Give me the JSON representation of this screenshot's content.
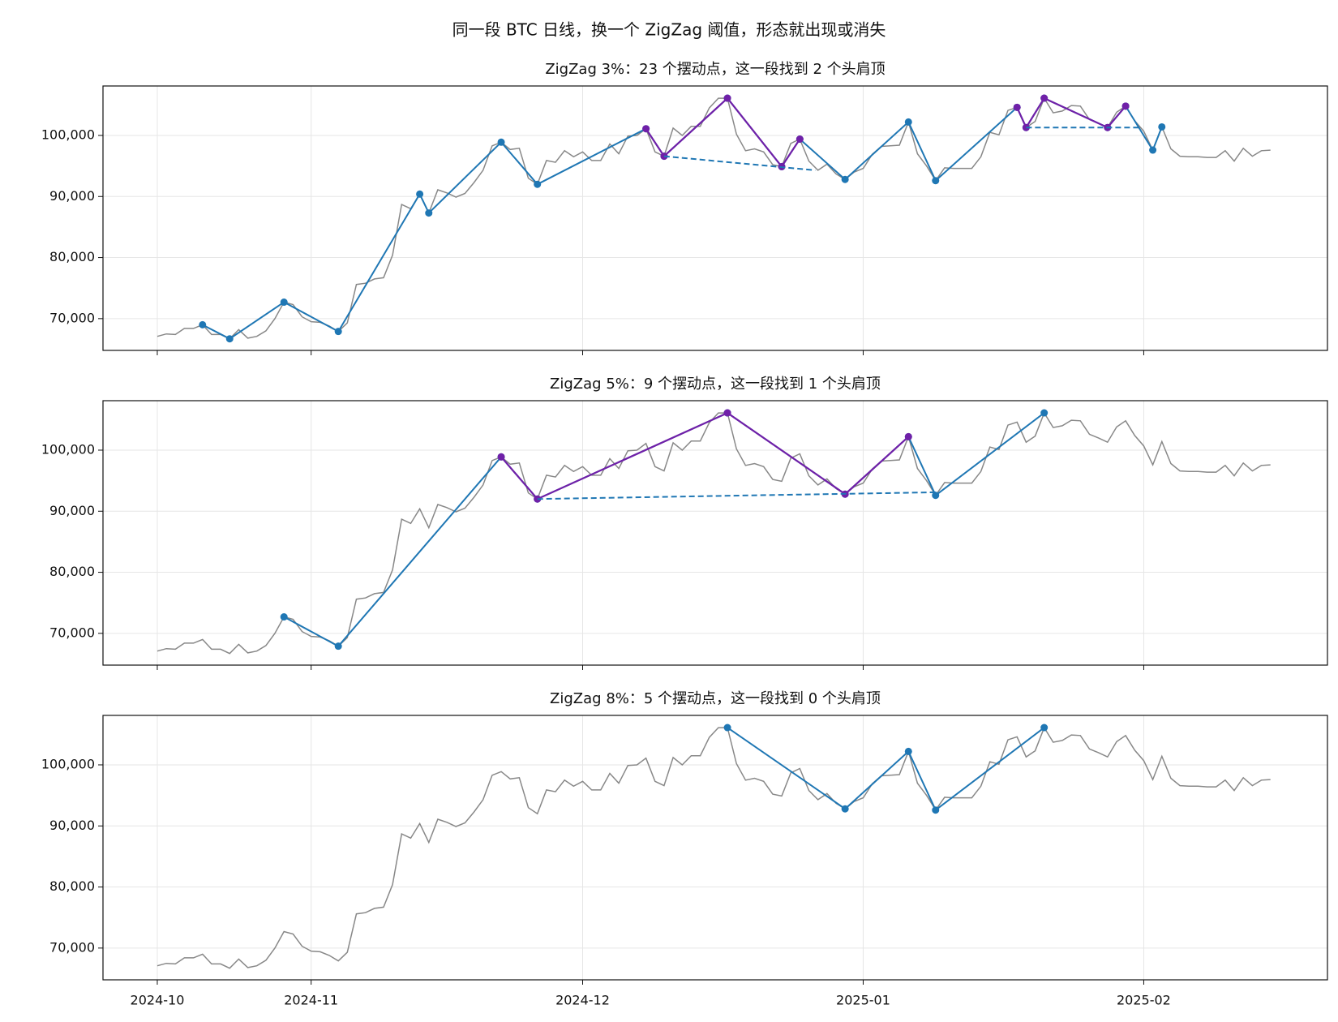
{
  "title": "同一段 BTC 日线，换一个 ZigZag 阈值，形态就出现或消失",
  "chart_data": [
    {
      "type": "line",
      "title": "ZigZag 3%：23 个摆动点，这一段找到 2 个头肩顶",
      "x": [
        0,
        1,
        2,
        3,
        4,
        5,
        6,
        7,
        8,
        9,
        10,
        11,
        12,
        13,
        14,
        15,
        16,
        17,
        18,
        19,
        20,
        21,
        22,
        23,
        24,
        25,
        26,
        27,
        28,
        29,
        30,
        31,
        32,
        33,
        34,
        35,
        36,
        37,
        38,
        39,
        40,
        41,
        42,
        43,
        44,
        45,
        46,
        47,
        48,
        49,
        50,
        51,
        52,
        53,
        54,
        55,
        56,
        57,
        58,
        59,
        60,
        61,
        62,
        63,
        64,
        65,
        66,
        67,
        68,
        69,
        70,
        71,
        72,
        73,
        74,
        75,
        76,
        77,
        78,
        79,
        80,
        81,
        82,
        83,
        84,
        85,
        86,
        87,
        88,
        89,
        90,
        91,
        92,
        93,
        94,
        95,
        96,
        97,
        98,
        99,
        100,
        101,
        102,
        103,
        104,
        105,
        106,
        107,
        108,
        109,
        110,
        111,
        112,
        113,
        114,
        115,
        116,
        117,
        118,
        119,
        120,
        121,
        122,
        123
      ],
      "xlim": [
        -6,
        129.3
      ],
      "xticks": [
        0,
        17,
        47,
        78,
        109
      ],
      "ylim": [
        64800,
        108100
      ],
      "yticks": [
        {
          "value": 70000,
          "label": "70,000"
        },
        {
          "value": 80000,
          "label": "80,000"
        },
        {
          "value": 90000,
          "label": "90,000"
        },
        {
          "value": 100000,
          "label": "100,000"
        }
      ],
      "grid": true,
      "price": {
        "color": "#888888",
        "values": [
          67100,
          67500,
          67400,
          68400,
          68400,
          69000,
          67400,
          67400,
          66700,
          68200,
          66800,
          67100,
          68000,
          70000,
          72700,
          72300,
          70300,
          69500,
          69400,
          68800,
          67900,
          69300,
          75600,
          75800,
          76500,
          76700,
          80400,
          88700,
          88000,
          90400,
          87300,
          91100,
          90600,
          89900,
          90500,
          92300,
          94300,
          98300,
          98900,
          97700,
          97900,
          93000,
          92000,
          95900,
          95600,
          97500,
          96500,
          97300,
          95900,
          95900,
          98600,
          97000,
          99900,
          100000,
          101100,
          97300,
          96600,
          101200,
          100000,
          101500,
          101500,
          104500,
          106100,
          106100,
          100200,
          97500,
          97800,
          97300,
          95200,
          94900,
          98700,
          99400,
          95800,
          94300,
          95300,
          93700,
          92800,
          94000,
          94600,
          96900,
          98200,
          98300,
          98400,
          102200,
          97000,
          95000,
          92600,
          94700,
          94600,
          94600,
          94600,
          96500,
          100500,
          100100,
          104100,
          104600,
          101300,
          102300,
          106100,
          103700,
          104000,
          104900,
          104800,
          102600,
          102000,
          101300,
          103800,
          104800,
          102400,
          100700,
          97600,
          101400,
          97800,
          96600,
          96500,
          96500,
          96400,
          96400,
          97500,
          95800,
          97900,
          96600,
          97500,
          97600
        ]
      },
      "zigzag": {
        "color": "#1f77b4",
        "x": [
          5,
          8,
          14,
          20,
          29,
          30,
          38,
          42,
          54,
          56,
          63,
          69,
          71,
          76,
          83,
          86,
          95,
          96,
          98,
          105,
          107,
          110,
          111
        ],
        "values": [
          69000,
          66700,
          72700,
          67900,
          90400,
          87300,
          98900,
          92000,
          101100,
          96600,
          106100,
          94900,
          99400,
          92800,
          102200,
          92600,
          104600,
          101300,
          106100,
          101300,
          104800,
          97600,
          101400
        ]
      },
      "patterns": [
        {
          "color": "#7020a8",
          "x": [
            54,
            56,
            63,
            69,
            71
          ],
          "values": [
            101100,
            96600,
            106100,
            94900,
            99400
          ]
        },
        {
          "color": "#7020a8",
          "x": [
            95,
            96,
            98,
            105,
            107
          ],
          "values": [
            104600,
            101300,
            106100,
            101300,
            104800
          ]
        }
      ],
      "necklines": [
        {
          "color": "#1f77b4",
          "dashed": true,
          "x": [
            56,
            72.7
          ],
          "values": [
            96600,
            94300
          ]
        },
        {
          "color": "#1f77b4",
          "dashed": true,
          "x": [
            96,
            108.7
          ],
          "values": [
            101300,
            101300
          ]
        }
      ]
    },
    {
      "type": "line",
      "title": "ZigZag 5%：9 个摆动点，这一段找到 1 个头肩顶",
      "x": [
        0,
        1,
        2,
        3,
        4,
        5,
        6,
        7,
        8,
        9,
        10,
        11,
        12,
        13,
        14,
        15,
        16,
        17,
        18,
        19,
        20,
        21,
        22,
        23,
        24,
        25,
        26,
        27,
        28,
        29,
        30,
        31,
        32,
        33,
        34,
        35,
        36,
        37,
        38,
        39,
        40,
        41,
        42,
        43,
        44,
        45,
        46,
        47,
        48,
        49,
        50,
        51,
        52,
        53,
        54,
        55,
        56,
        57,
        58,
        59,
        60,
        61,
        62,
        63,
        64,
        65,
        66,
        67,
        68,
        69,
        70,
        71,
        72,
        73,
        74,
        75,
        76,
        77,
        78,
        79,
        80,
        81,
        82,
        83,
        84,
        85,
        86,
        87,
        88,
        89,
        90,
        91,
        92,
        93,
        94,
        95,
        96,
        97,
        98,
        99,
        100,
        101,
        102,
        103,
        104,
        105,
        106,
        107,
        108,
        109,
        110,
        111,
        112,
        113,
        114,
        115,
        116,
        117,
        118,
        119,
        120,
        121,
        122,
        123
      ],
      "xlim": [
        -6,
        129.3
      ],
      "xticks": [
        0,
        17,
        47,
        78,
        109
      ],
      "ylim": [
        64800,
        108100
      ],
      "yticks": [
        {
          "value": 70000,
          "label": "70,000"
        },
        {
          "value": 80000,
          "label": "80,000"
        },
        {
          "value": 90000,
          "label": "90,000"
        },
        {
          "value": 100000,
          "label": "100,000"
        }
      ],
      "grid": true,
      "price": {
        "color": "#888888",
        "values": [
          67100,
          67500,
          67400,
          68400,
          68400,
          69000,
          67400,
          67400,
          66700,
          68200,
          66800,
          67100,
          68000,
          70000,
          72700,
          72300,
          70300,
          69500,
          69400,
          68800,
          67900,
          69300,
          75600,
          75800,
          76500,
          76700,
          80400,
          88700,
          88000,
          90400,
          87300,
          91100,
          90600,
          89900,
          90500,
          92300,
          94300,
          98300,
          98900,
          97700,
          97900,
          93000,
          92000,
          95900,
          95600,
          97500,
          96500,
          97300,
          95900,
          95900,
          98600,
          97000,
          99900,
          100000,
          101100,
          97300,
          96600,
          101200,
          100000,
          101500,
          101500,
          104500,
          106100,
          106100,
          100200,
          97500,
          97800,
          97300,
          95200,
          94900,
          98700,
          99400,
          95800,
          94300,
          95300,
          93700,
          92800,
          94000,
          94600,
          96900,
          98200,
          98300,
          98400,
          102200,
          97000,
          95000,
          92600,
          94700,
          94600,
          94600,
          94600,
          96500,
          100500,
          100100,
          104100,
          104600,
          101300,
          102300,
          106100,
          103700,
          104000,
          104900,
          104800,
          102600,
          102000,
          101300,
          103800,
          104800,
          102400,
          100700,
          97600,
          101400,
          97800,
          96600,
          96500,
          96500,
          96400,
          96400,
          97500,
          95800,
          97900,
          96600,
          97500,
          97600
        ]
      },
      "zigzag": {
        "color": "#1f77b4",
        "x": [
          14,
          20,
          38,
          42,
          63,
          76,
          83,
          86,
          98
        ],
        "values": [
          72700,
          67900,
          98900,
          92000,
          106100,
          92800,
          102200,
          92600,
          106100
        ]
      },
      "patterns": [
        {
          "color": "#7020a8",
          "x": [
            38,
            42,
            63,
            76,
            83
          ],
          "values": [
            98900,
            92000,
            106100,
            92800,
            102200
          ]
        }
      ],
      "necklines": [
        {
          "color": "#1f77b4",
          "dashed": true,
          "x": [
            42,
            86
          ],
          "values": [
            92000,
            93100
          ]
        }
      ]
    },
    {
      "type": "line",
      "title": "ZigZag 8%：5 个摆动点，这一段找到 0 个头肩顶",
      "x": [
        0,
        1,
        2,
        3,
        4,
        5,
        6,
        7,
        8,
        9,
        10,
        11,
        12,
        13,
        14,
        15,
        16,
        17,
        18,
        19,
        20,
        21,
        22,
        23,
        24,
        25,
        26,
        27,
        28,
        29,
        30,
        31,
        32,
        33,
        34,
        35,
        36,
        37,
        38,
        39,
        40,
        41,
        42,
        43,
        44,
        45,
        46,
        47,
        48,
        49,
        50,
        51,
        52,
        53,
        54,
        55,
        56,
        57,
        58,
        59,
        60,
        61,
        62,
        63,
        64,
        65,
        66,
        67,
        68,
        69,
        70,
        71,
        72,
        73,
        74,
        75,
        76,
        77,
        78,
        79,
        80,
        81,
        82,
        83,
        84,
        85,
        86,
        87,
        88,
        89,
        90,
        91,
        92,
        93,
        94,
        95,
        96,
        97,
        98,
        99,
        100,
        101,
        102,
        103,
        104,
        105,
        106,
        107,
        108,
        109,
        110,
        111,
        112,
        113,
        114,
        115,
        116,
        117,
        118,
        119,
        120,
        121,
        122,
        123
      ],
      "xlim": [
        -6,
        129.3
      ],
      "xticks": [
        {
          "value": 0,
          "label": "2024-10"
        },
        {
          "value": 17,
          "label": "2024-11"
        },
        {
          "value": 47,
          "label": "2024-12"
        },
        {
          "value": 78,
          "label": "2025-01"
        },
        {
          "value": 109,
          "label": "2025-02"
        }
      ],
      "ylim": [
        64800,
        108100
      ],
      "yticks": [
        {
          "value": 70000,
          "label": "70,000"
        },
        {
          "value": 80000,
          "label": "80,000"
        },
        {
          "value": 90000,
          "label": "90,000"
        },
        {
          "value": 100000,
          "label": "100,000"
        }
      ],
      "grid": true,
      "price": {
        "color": "#888888",
        "values": [
          67100,
          67500,
          67400,
          68400,
          68400,
          69000,
          67400,
          67400,
          66700,
          68200,
          66800,
          67100,
          68000,
          70000,
          72700,
          72300,
          70300,
          69500,
          69400,
          68800,
          67900,
          69300,
          75600,
          75800,
          76500,
          76700,
          80400,
          88700,
          88000,
          90400,
          87300,
          91100,
          90600,
          89900,
          90500,
          92300,
          94300,
          98300,
          98900,
          97700,
          97900,
          93000,
          92000,
          95900,
          95600,
          97500,
          96500,
          97300,
          95900,
          95900,
          98600,
          97000,
          99900,
          100000,
          101100,
          97300,
          96600,
          101200,
          100000,
          101500,
          101500,
          104500,
          106100,
          106100,
          100200,
          97500,
          97800,
          97300,
          95200,
          94900,
          98700,
          99400,
          95800,
          94300,
          95300,
          93700,
          92800,
          94000,
          94600,
          96900,
          98200,
          98300,
          98400,
          102200,
          97000,
          95000,
          92600,
          94700,
          94600,
          94600,
          94600,
          96500,
          100500,
          100100,
          104100,
          104600,
          101300,
          102300,
          106100,
          103700,
          104000,
          104900,
          104800,
          102600,
          102000,
          101300,
          103800,
          104800,
          102400,
          100700,
          97600,
          101400,
          97800,
          96600,
          96500,
          96500,
          96400,
          96400,
          97500,
          95800,
          97900,
          96600,
          97500,
          97600
        ]
      },
      "zigzag": {
        "color": "#1f77b4",
        "x": [
          63,
          76,
          83,
          86,
          98
        ],
        "values": [
          106100,
          92800,
          102200,
          92600,
          106100
        ]
      },
      "patterns": [],
      "necklines": []
    }
  ]
}
